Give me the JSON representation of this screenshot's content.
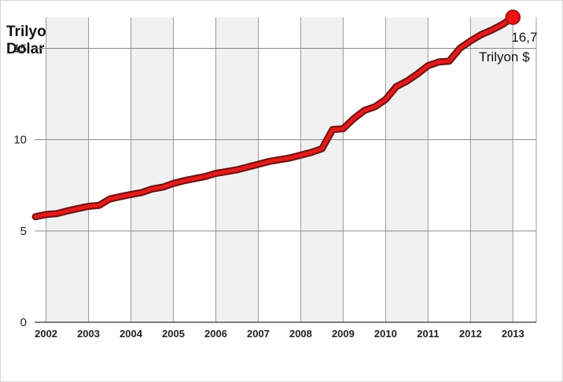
{
  "chart_data": {
    "type": "line",
    "ylabel": [
      "Trilyon",
      "Dolar"
    ],
    "ylim": [
      0,
      16.7
    ],
    "yticks": [
      0,
      5,
      10,
      15
    ],
    "xlim": [
      2001.73,
      2013.55
    ],
    "xticks": [
      2002,
      2003,
      2004,
      2005,
      2006,
      2007,
      2008,
      2009,
      2010,
      2011,
      2012,
      2013
    ],
    "grid": true,
    "bands": "alternating vertical shading",
    "series": [
      {
        "color": "#e21b1b",
        "outline": "#6e1010",
        "x": [
          2001.75,
          2002.0,
          2002.25,
          2002.5,
          2002.75,
          2003.0,
          2003.25,
          2003.5,
          2003.75,
          2004.0,
          2004.25,
          2004.5,
          2004.75,
          2005.0,
          2005.25,
          2005.5,
          2005.75,
          2006.0,
          2006.25,
          2006.5,
          2006.75,
          2007.0,
          2007.25,
          2007.5,
          2007.75,
          2008.0,
          2008.25,
          2008.5,
          2008.75,
          2009.0,
          2009.25,
          2009.5,
          2009.75,
          2010.0,
          2010.25,
          2010.5,
          2010.75,
          2011.0,
          2011.25,
          2011.5,
          2011.75,
          2012.0,
          2012.25,
          2012.5,
          2012.75,
          2013.0
        ],
        "values": [
          5.78,
          5.9,
          5.95,
          6.1,
          6.23,
          6.35,
          6.4,
          6.75,
          6.88,
          7.0,
          7.1,
          7.3,
          7.4,
          7.6,
          7.75,
          7.87,
          7.98,
          8.15,
          8.25,
          8.35,
          8.5,
          8.65,
          8.8,
          8.9,
          9.0,
          9.15,
          9.3,
          9.5,
          10.55,
          10.6,
          11.15,
          11.6,
          11.8,
          12.2,
          12.9,
          13.2,
          13.6,
          14.05,
          14.25,
          14.3,
          15.0,
          15.4,
          15.75,
          16.0,
          16.3,
          16.7
        ]
      }
    ],
    "annotation": {
      "value": 16.7,
      "line1": "16,7",
      "line2": "Trilyon $"
    }
  }
}
